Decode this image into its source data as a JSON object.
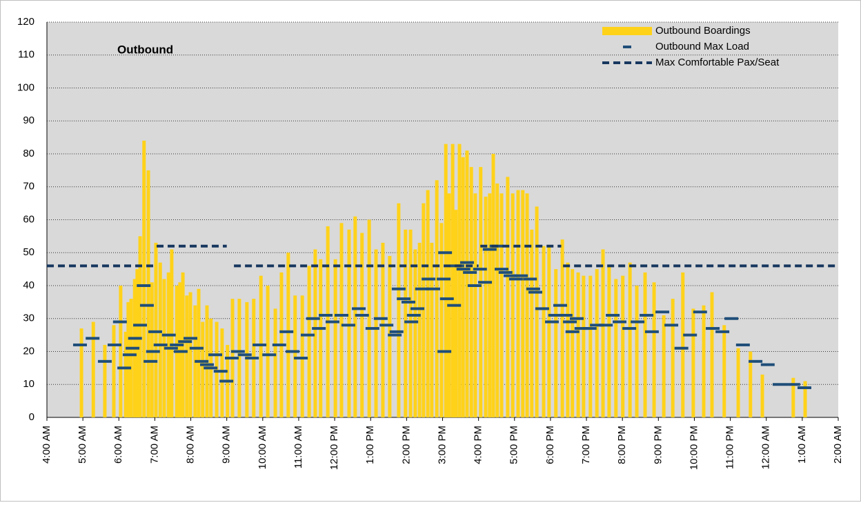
{
  "chart_data": {
    "type": "combo",
    "title": "Outbound",
    "legend": "top-right",
    "grid": true,
    "xlim": [
      4,
      26
    ],
    "ylim": [
      0,
      120
    ],
    "yticks": [
      0,
      10,
      20,
      30,
      40,
      50,
      60,
      70,
      80,
      90,
      100,
      110,
      120
    ],
    "xticks": [
      {
        "value": 4,
        "label": "4:00 AM"
      },
      {
        "value": 5,
        "label": "5:00 AM"
      },
      {
        "value": 6,
        "label": "6:00 AM"
      },
      {
        "value": 7,
        "label": "7:00 AM"
      },
      {
        "value": 8,
        "label": "8:00 AM"
      },
      {
        "value": 9,
        "label": "9:00 AM"
      },
      {
        "value": 10,
        "label": "10:00 AM"
      },
      {
        "value": 11,
        "label": "11:00 AM"
      },
      {
        "value": 12,
        "label": "12:00 PM"
      },
      {
        "value": 13,
        "label": "1:00 PM"
      },
      {
        "value": 14,
        "label": "2:00 PM"
      },
      {
        "value": 15,
        "label": "3:00 PM"
      },
      {
        "value": 16,
        "label": "4:00 PM"
      },
      {
        "value": 17,
        "label": "5:00 PM"
      },
      {
        "value": 18,
        "label": "6:00 PM"
      },
      {
        "value": 19,
        "label": "7:00 PM"
      },
      {
        "value": 20,
        "label": "8:00 PM"
      },
      {
        "value": 21,
        "label": "9:00 PM"
      },
      {
        "value": 22,
        "label": "10:00 PM"
      },
      {
        "value": 23,
        "label": "11:00 PM"
      },
      {
        "value": 24,
        "label": "12:00 AM"
      },
      {
        "value": 25,
        "label": "1:00 AM"
      },
      {
        "value": 26,
        "label": "2:00 AM"
      }
    ],
    "series": [
      {
        "name": "Outbound Boardings",
        "type": "bar",
        "color": "#ffd21a",
        "x": [
          4.96,
          5.29,
          5.61,
          5.86,
          6.05,
          6.19,
          6.26,
          6.34,
          6.44,
          6.51,
          6.59,
          6.7,
          6.82,
          6.92,
          7.03,
          7.15,
          7.26,
          7.38,
          7.47,
          7.61,
          7.7,
          7.78,
          7.89,
          7.99,
          8.12,
          8.22,
          8.33,
          8.45,
          8.56,
          8.72,
          8.87,
          9.02,
          9.16,
          9.35,
          9.56,
          9.75,
          9.95,
          10.14,
          10.35,
          10.52,
          10.71,
          10.9,
          11.1,
          11.29,
          11.46,
          11.61,
          11.81,
          12.02,
          12.19,
          12.4,
          12.57,
          12.76,
          12.96,
          13.15,
          13.34,
          13.53,
          13.78,
          13.97,
          14.11,
          14.24,
          14.36,
          14.47,
          14.59,
          14.7,
          14.84,
          14.97,
          15.09,
          15.18,
          15.28,
          15.37,
          15.47,
          15.57,
          15.68,
          15.8,
          15.91,
          16.06,
          16.2,
          16.31,
          16.41,
          16.52,
          16.64,
          16.81,
          16.95,
          17.1,
          17.23,
          17.35,
          17.48,
          17.62,
          17.81,
          17.96,
          18.15,
          18.33,
          18.48,
          18.61,
          18.77,
          18.92,
          19.11,
          19.29,
          19.46,
          19.63,
          19.82,
          20.01,
          20.21,
          20.4,
          20.63,
          20.88,
          21.15,
          21.4,
          21.68,
          21.97,
          22.26,
          22.49,
          22.83,
          23.22,
          23.56,
          23.89,
          24.75,
          25.08
        ],
        "values": [
          27,
          29,
          22,
          28,
          40,
          26,
          35,
          36,
          42,
          45,
          55,
          84,
          75,
          41,
          53,
          47,
          42,
          44,
          51,
          40,
          41,
          44,
          37,
          38,
          34,
          39,
          29,
          34,
          30,
          29,
          27,
          22,
          36,
          36,
          35,
          36,
          43,
          40,
          33,
          44,
          50,
          37,
          37,
          46,
          51,
          48,
          58,
          48,
          59,
          57,
          61,
          56,
          60,
          51,
          53,
          49,
          65,
          57,
          57,
          51,
          53,
          65,
          69,
          53,
          72,
          59,
          83,
          68,
          83,
          63,
          83,
          79,
          81,
          76,
          68,
          76,
          67,
          68,
          80,
          71,
          68,
          73,
          68,
          69,
          69,
          68,
          57,
          64,
          52,
          52,
          45,
          54,
          47,
          45,
          44,
          43,
          43,
          45,
          51,
          46,
          42,
          43,
          47,
          40,
          44,
          41,
          31,
          36,
          44,
          33,
          34,
          38,
          28,
          21,
          20,
          13,
          12,
          11
        ]
      },
      {
        "name": "Outbound Max Load",
        "type": "dash",
        "color": "#1f4e79",
        "x": [
          4.92,
          5.27,
          5.61,
          5.88,
          6.03,
          6.15,
          6.3,
          6.38,
          6.45,
          6.59,
          6.69,
          6.78,
          6.88,
          6.95,
          7.01,
          7.16,
          7.39,
          7.45,
          7.61,
          7.72,
          7.84,
          7.99,
          8.16,
          8.3,
          8.45,
          8.55,
          8.68,
          8.83,
          8.99,
          9.14,
          9.31,
          9.5,
          9.7,
          9.91,
          10.18,
          10.46,
          10.66,
          10.83,
          11.06,
          11.25,
          11.4,
          11.56,
          11.75,
          11.94,
          12.19,
          12.38,
          12.67,
          12.76,
          13.05,
          13.28,
          13.44,
          13.67,
          13.72,
          13.78,
          13.92,
          14.05,
          14.13,
          14.2,
          14.3,
          14.43,
          14.61,
          14.74,
          15.03,
          15.07,
          15.05,
          15.12,
          15.32,
          15.41,
          15.58,
          15.68,
          15.76,
          15.89,
          16.04,
          16.18,
          16.31,
          16.5,
          16.64,
          16.75,
          16.89,
          17.04,
          17.18,
          17.43,
          17.52,
          17.58,
          17.77,
          18.04,
          18.13,
          18.27,
          18.42,
          18.54,
          18.61,
          18.73,
          18.86,
          19.09,
          19.29,
          19.54,
          19.73,
          19.92,
          20.19,
          20.42,
          20.67,
          20.82,
          21.11,
          21.36,
          21.64,
          21.88,
          22.16,
          22.51,
          22.78,
          23.03,
          23.35,
          23.7,
          24.04,
          24.37,
          24.75,
          25.06
        ],
        "values": [
          22,
          24,
          17,
          22,
          29,
          15,
          19,
          21,
          24,
          28,
          40,
          34,
          17,
          20,
          26,
          22,
          25,
          21,
          22,
          20,
          23,
          24,
          21,
          17,
          16,
          15,
          19,
          14,
          11,
          18,
          20,
          19,
          18,
          22,
          19,
          22,
          26,
          20,
          18,
          25,
          30,
          27,
          31,
          29,
          31,
          28,
          33,
          31,
          27,
          30,
          28,
          25,
          26,
          39,
          36,
          35,
          29,
          31,
          33,
          39,
          42,
          39,
          42,
          50,
          20,
          36,
          34,
          46,
          45,
          47,
          44,
          40,
          45,
          41,
          51,
          52,
          45,
          44,
          43,
          42,
          43,
          42,
          39,
          38,
          33,
          29,
          31,
          34,
          31,
          29,
          26,
          30,
          27,
          27,
          28,
          28,
          31,
          29,
          27,
          29,
          31,
          26,
          32,
          28,
          21,
          25,
          32,
          27,
          26,
          30,
          22,
          17,
          16,
          10,
          10,
          9
        ]
      },
      {
        "name": "Max Comfortable Pax/Seat",
        "type": "line",
        "color": "#17375e",
        "x": [
          4,
          7,
          7,
          7.05,
          9,
          9,
          9.2,
          16,
          16,
          16.05,
          18.3,
          18.3,
          18.35,
          26
        ],
        "values": [
          46,
          46,
          null,
          52,
          52,
          null,
          46,
          46,
          null,
          52,
          52,
          null,
          46,
          46
        ]
      }
    ]
  }
}
